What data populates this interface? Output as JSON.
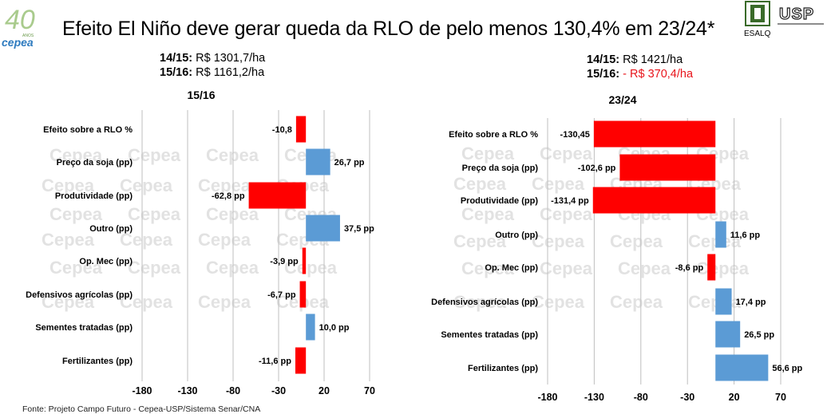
{
  "title": "Efeito El Niño deve gerar queda da RLO de pelo menos 130,4% em 23/24*",
  "logos": {
    "left": {
      "name": "cepea-40-anos-logo",
      "text_number": "40",
      "text_small": "ANOS",
      "text_brand": "cepea"
    },
    "right": {
      "name": "esalq-usp-logo",
      "esalq_text": "ESALQ",
      "usp_text": "USP"
    }
  },
  "summaries": {
    "left": {
      "line1_label": "14/15:",
      "line1_value": "R$ 1301,7/ha",
      "line2_label": "15/16:",
      "line2_value": "R$ 1161,2/ha"
    },
    "right": {
      "line1_label": "14/15:",
      "line1_value": "R$ 1421/ha",
      "line2_label": "15/16:",
      "line2_value": "- R$ 370,4/ha"
    }
  },
  "watermark_text": "Cepea",
  "colors": {
    "negative": "#ff0000",
    "positive": "#5b9bd5",
    "grid": "#bfbfbf",
    "watermark": "#d9d9d9",
    "summary_negative": "#e8141b"
  },
  "source": "Fonte: Projeto Campo Futuro - Cepea-USP/Sistema Senar/CNA",
  "chart_data": [
    {
      "type": "bar",
      "orientation": "horizontal",
      "title": "15/16",
      "categories": [
        "Efeito sobre a RLO %",
        "Preço da soja (pp)",
        "Produtividade (pp)",
        "Outro (pp)",
        "Op. Mec (pp)",
        "Defensivos agrícolas (pp)",
        "Sementes tratadas (pp)",
        "Fertilizantes (pp)"
      ],
      "values": [
        -10.8,
        26.7,
        -62.8,
        37.5,
        -3.9,
        -6.7,
        10.0,
        -11.6
      ],
      "labels": [
        "-10,8",
        "26,7 pp",
        "-62,8 pp",
        "37,5 pp",
        "-3,9 pp",
        "-6,7 pp",
        "10,0 pp",
        "-11,6 pp"
      ],
      "xlim": [
        -180,
        70
      ],
      "xticks": [
        -180,
        -130,
        -80,
        -30,
        20,
        70
      ],
      "xtick_labels": [
        "-180",
        "-130",
        "-80",
        "-30",
        "20",
        "70"
      ],
      "grid": true
    },
    {
      "type": "bar",
      "orientation": "horizontal",
      "title": "23/24",
      "categories": [
        "Efeito sobre a RLO %",
        "Preço da soja (pp)",
        "Produtividade (pp)",
        "Outro (pp)",
        "Op. Mec (pp)",
        "Defensivos agrícolas (pp)",
        "Sementes tratadas (pp)",
        "Fertilizantes (pp)"
      ],
      "values": [
        -130.45,
        -102.6,
        -131.4,
        11.6,
        -8.6,
        17.4,
        26.5,
        56.6
      ],
      "labels": [
        "-130,45",
        "-102,6 pp",
        "-131,4 pp",
        "11,6 pp",
        "-8,6 pp",
        "17,4 pp",
        "26,5 pp",
        "56,6 pp"
      ],
      "xlim": [
        -180,
        70
      ],
      "xticks": [
        -180,
        -130,
        -80,
        -30,
        20,
        70
      ],
      "xtick_labels": [
        "-180",
        "-130",
        "-80",
        "-30",
        "20",
        "70"
      ],
      "grid": true
    }
  ]
}
